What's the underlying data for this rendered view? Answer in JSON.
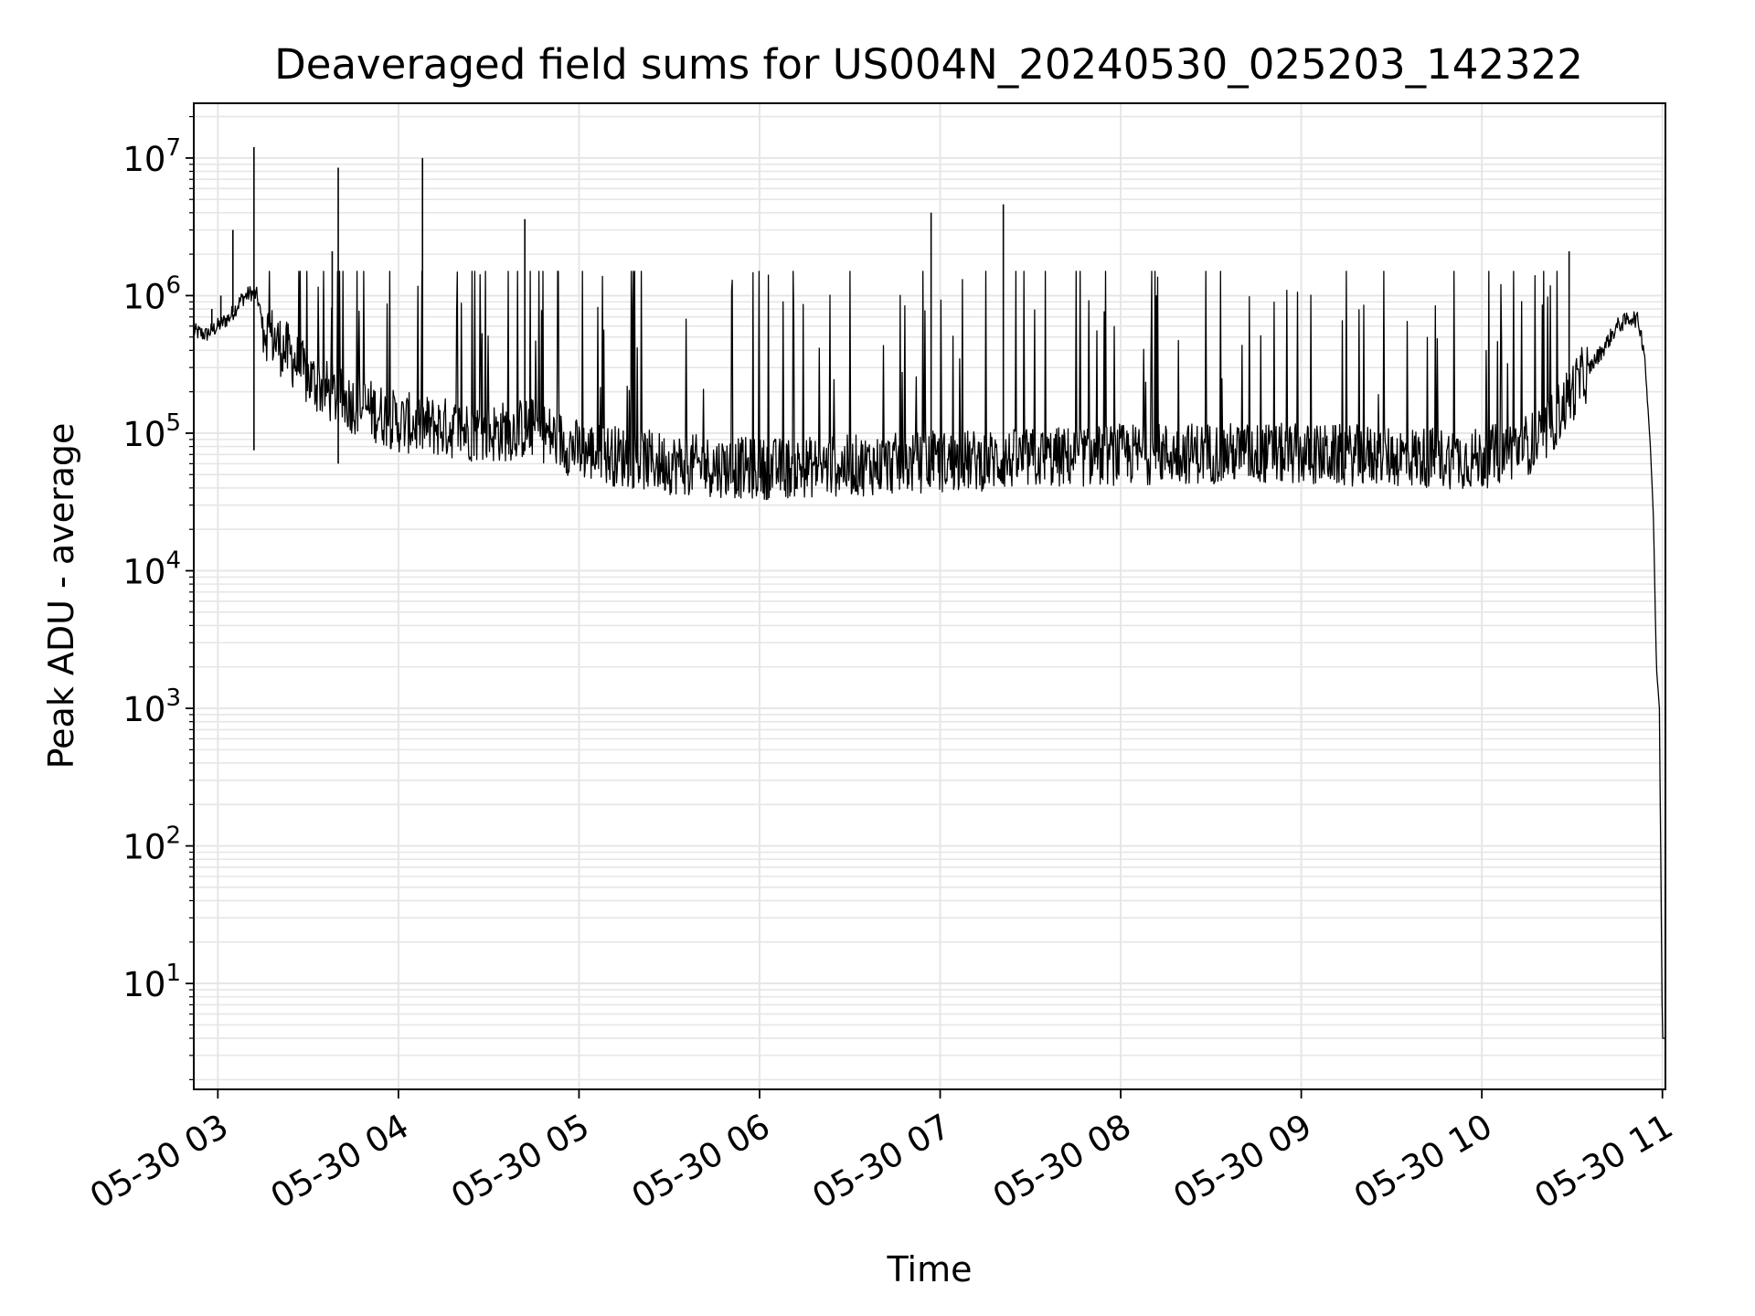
{
  "chart_data": {
    "type": "line",
    "title": "Deaveraged field sums for US004N_20240530_025203_142322",
    "xlabel": "Time",
    "ylabel": "Peak ADU - average",
    "yscale": "log",
    "ylim": [
      1.7,
      25000000
    ],
    "xlim": [
      "05-30 02:52",
      "05-30 11:01"
    ],
    "grid": true,
    "grid_color": "#e6e6e6",
    "line_color": "#000000",
    "x_ticks": [
      "05-30 03",
      "05-30 04",
      "05-30 05",
      "05-30 06",
      "05-30 07",
      "05-30 08",
      "05-30 09",
      "05-30 10",
      "05-30 11"
    ],
    "y_ticks": [
      {
        "base": "10",
        "exp": "1"
      },
      {
        "base": "10",
        "exp": "2"
      },
      {
        "base": "10",
        "exp": "3"
      },
      {
        "base": "10",
        "exp": "4"
      },
      {
        "base": "10",
        "exp": "5"
      },
      {
        "base": "10",
        "exp": "6"
      },
      {
        "base": "10",
        "exp": "7"
      }
    ],
    "series": [
      {
        "x": [
          "05-30 02:52",
          "05-30 02:56",
          "05-30 03:00",
          "05-30 03:04",
          "05-30 03:08",
          "05-30 03:11",
          "05-30 03:13",
          "05-30 03:15",
          "05-30 03:20",
          "05-30 03:25",
          "05-30 03:30",
          "05-30 03:40",
          "05-30 03:50",
          "05-30 04:00",
          "05-30 04:15",
          "05-30 04:30",
          "05-30 04:45",
          "05-30 05:00",
          "05-30 05:30",
          "05-30 06:00",
          "05-30 06:30",
          "05-30 07:00",
          "05-30 07:30",
          "05-30 08:00",
          "05-30 08:30",
          "05-30 09:00",
          "05-30 09:30",
          "05-30 10:00",
          "05-30 10:20",
          "05-30 10:30",
          "05-30 10:40",
          "05-30 10:45",
          "05-30 10:50",
          "05-30 10:52",
          "05-30 10:54",
          "05-30 10:56",
          "05-30 10:57",
          "05-30 10:58",
          "05-30 10:59",
          "05-30 11:00",
          "05-30 11:01"
        ],
        "y": [
          550000,
          520000,
          600000,
          700000,
          950000,
          1050000,
          1000000,
          600000,
          450000,
          350000,
          250000,
          180000,
          150000,
          120000,
          110000,
          100000,
          110000,
          75000,
          60000,
          55000,
          58000,
          62000,
          65000,
          70000,
          72000,
          70000,
          68000,
          65000,
          90000,
          200000,
          400000,
          600000,
          700000,
          650000,
          400000,
          80000,
          25000,
          2000,
          1000,
          4,
          4
        ]
      }
    ],
    "spikes": [
      {
        "x": "05-30 02:58",
        "y": 800000
      },
      {
        "x": "05-30 03:01",
        "y": 1000000
      },
      {
        "x": "05-30 03:05",
        "y": 3000000
      },
      {
        "x": "05-30 03:12",
        "y": 12000000
      },
      {
        "x": "05-30 03:12",
        "y": 75000,
        "down": true
      },
      {
        "x": "05-30 03:38",
        "y": 2100000
      },
      {
        "x": "05-30 03:40",
        "y": 8500000
      },
      {
        "x": "05-30 03:40",
        "y": 60000,
        "down": true
      },
      {
        "x": "05-30 04:08",
        "y": 10000000
      },
      {
        "x": "05-30 04:42",
        "y": 3600000
      },
      {
        "x": "05-30 06:57",
        "y": 4000000
      },
      {
        "x": "05-30 07:21",
        "y": 4600000
      },
      {
        "x": "05-30 10:29",
        "y": 2100000
      }
    ]
  }
}
